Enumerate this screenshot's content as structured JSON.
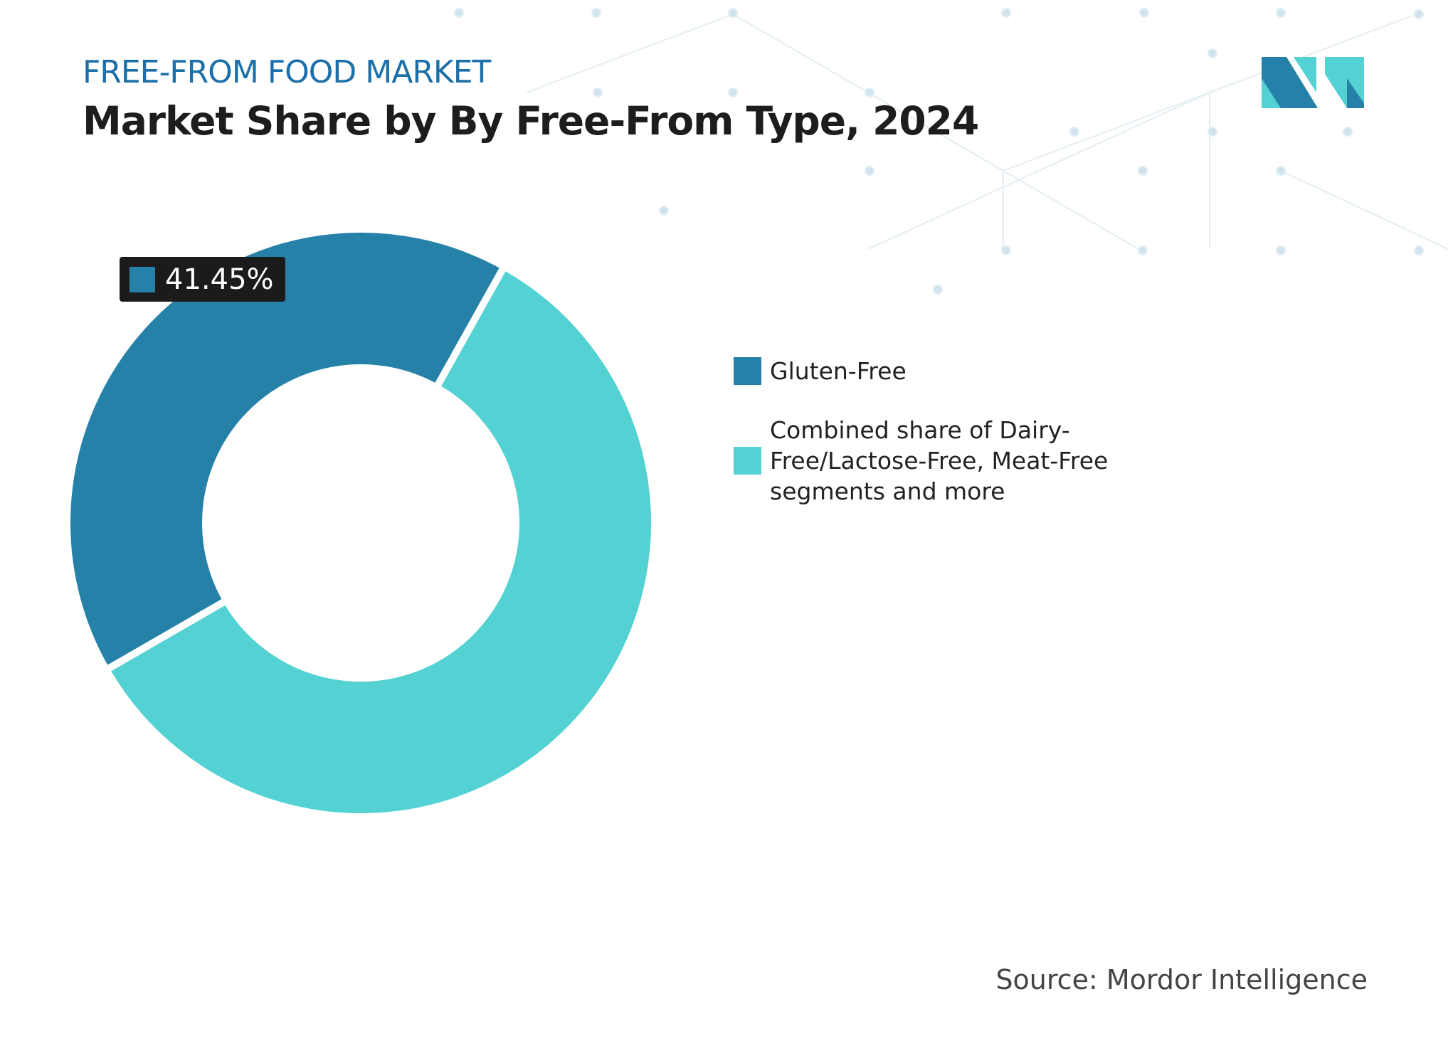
{
  "chart_data": {
    "type": "pie",
    "donut": true,
    "subtitle": "FREE-FROM FOOD MARKET",
    "title": "Market Share by By Free-From Type, 2024",
    "categories": [
      "Gluten-Free",
      "Combined share of Dairy-Free/Lactose-Free, Meat-Free segments and more"
    ],
    "values": [
      41.45,
      58.55
    ],
    "value_labels": [
      "41.45%",
      null
    ],
    "colors": [
      "#2681a8",
      "#53d1d3"
    ],
    "source": "Source: Mordor Intelligence"
  }
}
